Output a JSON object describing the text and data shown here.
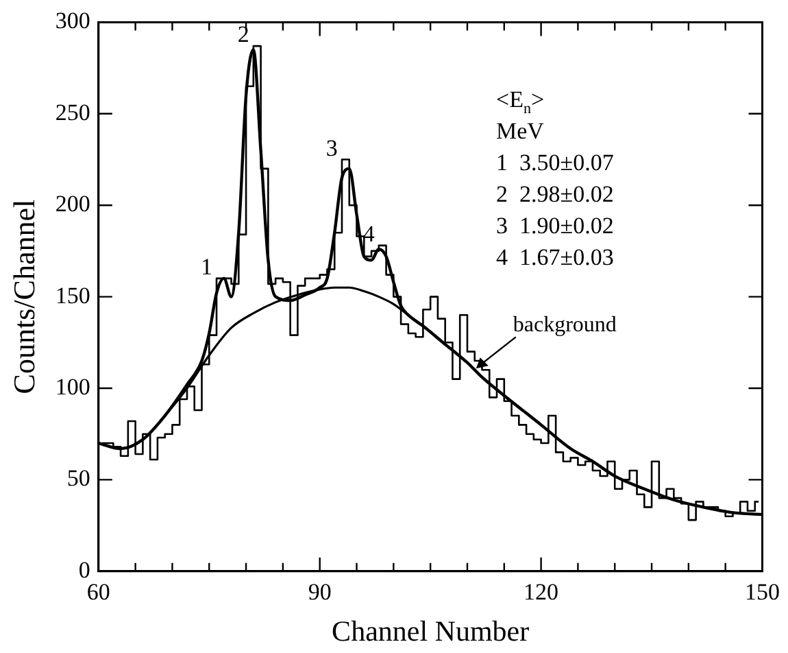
{
  "chart_data": {
    "type": "step",
    "xlabel": "Channel Number",
    "ylabel": "Counts/Channel",
    "series": [
      {
        "color": "#000000",
        "x": [
          60.5,
          61.5,
          62.5,
          63.5,
          64.5,
          65.5,
          66.5,
          67.5,
          68.5,
          69.5,
          70.5,
          71.5,
          72.5,
          73.5,
          74.5,
          75.5,
          76.5,
          77.5,
          78.5,
          79.5,
          80.5,
          81.5,
          82.5,
          83.5,
          84.5,
          85.5,
          86.5,
          87.5,
          88.5,
          89.5,
          90.5,
          91.5,
          92.5,
          93.5,
          94.5,
          95.5,
          96.5,
          97.5,
          98.5,
          99.5,
          100.5,
          101.5,
          102.5,
          103.5,
          104.5,
          105.5,
          106.5,
          107.5,
          108.5,
          109.5,
          110.5,
          111.5,
          112.5,
          113.5,
          114.5,
          115.5,
          116.5,
          117.5,
          118.5,
          119.5,
          120.5,
          121.5,
          122.5,
          123.5,
          124.5,
          125.5,
          126.5,
          127.5,
          128.5,
          129.5,
          130.5,
          131.5,
          132.5,
          133.5,
          134.5,
          135.5,
          136.5,
          137.5,
          138.5,
          139.5,
          140.5,
          141.5,
          142.5,
          143.5,
          144.5,
          145.5,
          146.5,
          147.5,
          148.5,
          149.5
        ],
        "values": [
          70,
          70,
          68,
          63,
          82,
          64,
          75,
          61,
          73,
          75,
          80,
          94,
          101,
          88,
          113,
          129,
          160,
          160,
          157,
          184,
          265,
          287,
          220,
          157,
          160,
          158,
          129,
          156,
          160,
          160,
          162,
          165,
          185,
          225,
          200,
          183,
          172,
          175,
          178,
          162,
          150,
          135,
          130,
          128,
          143,
          150,
          138,
          125,
          105,
          140,
          120,
          115,
          110,
          95,
          105,
          93,
          85,
          80,
          75,
          72,
          70,
          85,
          65,
          60,
          62,
          58,
          60,
          55,
          52,
          60,
          45,
          50,
          55,
          42,
          35,
          60,
          40,
          45,
          40,
          37,
          28,
          38,
          35,
          35,
          33,
          30,
          32,
          38,
          33,
          38
        ]
      },
      {
        "type": "line",
        "color": "#000000",
        "x": [
          60,
          63,
          66,
          69,
          72,
          74,
          75,
          76,
          77,
          78,
          79,
          80,
          81,
          82,
          83,
          84,
          86,
          88,
          90,
          91,
          92,
          93,
          94,
          95,
          96,
          97,
          98,
          99,
          100,
          101,
          102,
          104,
          107,
          110,
          112,
          115,
          120,
          124,
          127,
          130,
          134,
          138,
          142,
          146,
          150
        ],
        "values": [
          70,
          67,
          72,
          85,
          102,
          115,
          130,
          152,
          160,
          150,
          185,
          260,
          285,
          230,
          170,
          150,
          148,
          151,
          155,
          160,
          185,
          215,
          220,
          195,
          172,
          170,
          176,
          172,
          158,
          145,
          140,
          134,
          124,
          114,
          106,
          96,
          80,
          67,
          60,
          52,
          45,
          39,
          35,
          32,
          31
        ]
      },
      {
        "type": "line",
        "color": "#000000",
        "x": [
          60,
          63,
          66,
          69,
          72,
          75,
          78,
          81,
          84,
          87,
          90,
          92,
          94,
          96,
          98,
          100,
          102,
          104,
          107,
          110,
          112,
          115,
          120,
          124,
          127,
          130,
          134,
          138,
          142,
          146,
          150
        ],
        "values": [
          70,
          67,
          72,
          85,
          100,
          118,
          133,
          141,
          147,
          151,
          154,
          155,
          155,
          153,
          150,
          146,
          140,
          134,
          124,
          114,
          106,
          96,
          80,
          67,
          60,
          52,
          45,
          39,
          35,
          32,
          31
        ]
      }
    ],
    "xlim": [
      60,
      150
    ],
    "xticks": [
      60,
      {
        "value": 65,
        "label": null
      },
      {
        "value": 70,
        "label": null
      },
      {
        "value": 75,
        "label": null
      },
      {
        "value": 80,
        "label": null
      },
      {
        "value": 85,
        "label": null
      },
      90,
      {
        "value": 95,
        "label": null
      },
      {
        "value": 100,
        "label": null
      },
      {
        "value": 105,
        "label": null
      },
      {
        "value": 110,
        "label": null
      },
      {
        "value": 115,
        "label": null
      },
      120,
      {
        "value": 125,
        "label": null
      },
      {
        "value": 130,
        "label": null
      },
      {
        "value": 135,
        "label": null
      },
      {
        "value": 140,
        "label": null
      },
      {
        "value": 145,
        "label": null
      },
      150
    ],
    "ylim": [
      0,
      300
    ],
    "yticks": [
      0,
      50,
      100,
      150,
      200,
      250,
      300
    ],
    "annotations": [
      "<E$_{n}$>",
      "MeV",
      "1  3.50±0.07",
      "2  2.98±0.02",
      "3  1.90±0.02",
      "4  1.67±0.03",
      {
        "text": "1",
        "x": 76.5,
        "y": 160
      },
      {
        "text": "2",
        "x": 81.5,
        "y": 287
      },
      {
        "text": "3",
        "x": 93.5,
        "y": 225
      },
      {
        "text": "4",
        "x": 98.5,
        "y": 178
      },
      {
        "text": "background",
        "x": 111,
        "y": 110
      }
    ]
  }
}
